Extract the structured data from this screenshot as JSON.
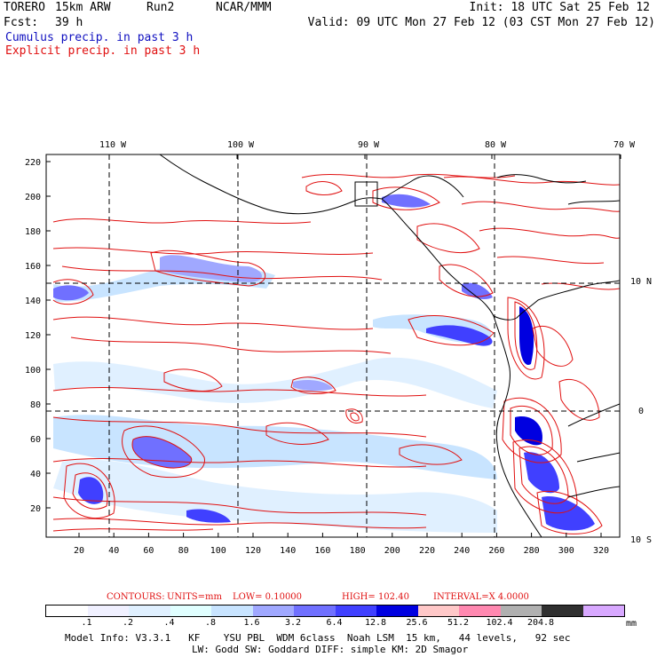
{
  "header": {
    "model": "TORERO",
    "resolution": "15km ARW",
    "run": "Run2",
    "org": "NCAR/MMM",
    "init": "Init: 18 UTC Sat 25 Feb 12",
    "fcst_label": "Fcst:",
    "fcst_value": "39 h",
    "valid": "Valid: 09 UTC Mon 27 Feb 12 (03 CST Mon 27 Feb 12)",
    "legend_cumulus": "Cumulus precip. in past 3 h",
    "legend_explicit": "Explicit precip. in past 3 h"
  },
  "map": {
    "top_lon_labels": [
      "110 W",
      "100 W",
      "90 W",
      "80 W",
      "70 W"
    ],
    "right_lat_labels": [
      "10 N",
      "0",
      "10 S"
    ],
    "y_grid_labels": [
      "220",
      "200",
      "180",
      "160",
      "140",
      "120",
      "100",
      "80",
      "60",
      "40",
      "20"
    ],
    "x_grid_labels": [
      "20",
      "40",
      "60",
      "80",
      "100",
      "120",
      "140",
      "160",
      "180",
      "200",
      "220",
      "240",
      "260",
      "280",
      "300",
      "320"
    ]
  },
  "contours_line": {
    "contours": "CONTOURS:",
    "units": "UNITS=mm",
    "low": "LOW= 0.10000",
    "high": "HIGH= 102.40",
    "interval": "INTERVAL=X 4.0000"
  },
  "colorbar": {
    "labels": [
      ".1",
      ".2",
      ".4",
      ".8",
      "1.6",
      "3.2",
      "6.4",
      "12.8",
      "25.6",
      "51.2",
      "102.4",
      "204.8"
    ],
    "unit": "mm",
    "colors": [
      "#ffffff",
      "#f0f0ff",
      "#e0f0ff",
      "#e0ffff",
      "#c8e4ff",
      "#a0a8ff",
      "#7070ff",
      "#4040ff",
      "#0000e0",
      "#ffc8c8",
      "#ff88b0",
      "#b0b0b0",
      "#303030",
      "#d8a8ff"
    ]
  },
  "footer": {
    "line1": "Model Info: V3.3.1   KF    YSU PBL  WDM 6class  Noah LSM  15 km,   44 levels,   92 sec",
    "line2": "LW: Godd SW: Goddard DIFF: simple KM: 2D Smagor"
  }
}
